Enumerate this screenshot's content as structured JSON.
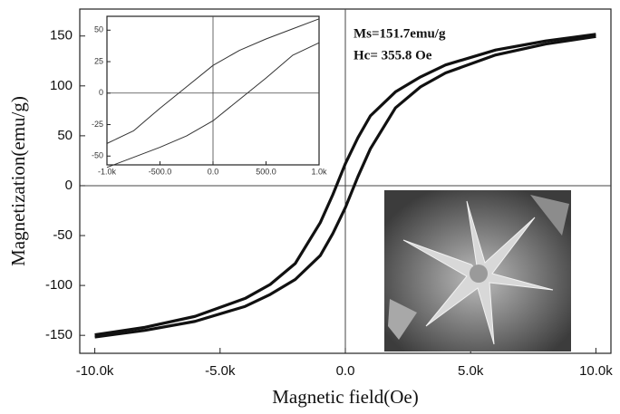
{
  "chart_data": [
    {
      "type": "line",
      "xlabel": "Magnetic field(Oe)",
      "ylabel": "Magnetization(emu/g)",
      "annotations": [
        "Ms=151.7emu/g",
        "Hc= 355.8 Oe"
      ],
      "x": [
        -10000,
        -8000,
        -6000,
        -4000,
        -3000,
        -2000,
        -1000,
        -500,
        0,
        500,
        1000,
        2000,
        3000,
        4000,
        6000,
        8000,
        10000
      ],
      "series": [
        {
          "color": "#111111",
          "values": [
            -149.5,
            -142,
            -131,
            -113,
            -99,
            -78,
            -37,
            -9,
            22,
            48,
            70,
            94,
            109,
            121,
            136,
            145,
            151.7
          ]
        },
        {
          "color": "#111111",
          "values": [
            -151.7,
            -145,
            -136,
            -121,
            -109,
            -94,
            -70,
            -48,
            -22,
            9,
            37,
            78,
            99,
            113,
            131,
            142,
            149.5
          ]
        }
      ],
      "xlim": [
        -10600,
        10600
      ],
      "ylim": [
        -168,
        177
      ],
      "xticks": [
        {
          "value": -10000,
          "label": "-10.0k"
        },
        {
          "value": -5000,
          "label": "-5.0k"
        },
        {
          "value": 0,
          "label": "0.0"
        },
        {
          "value": 5000,
          "label": "5.0k"
        },
        {
          "value": 10000,
          "label": "10.0k"
        }
      ],
      "yticks": [
        150,
        100,
        50,
        0,
        -50,
        -100,
        -150
      ]
    },
    {
      "type": "line",
      "x": [
        -1000,
        -750,
        -500,
        -250,
        0,
        250,
        500,
        750,
        1000
      ],
      "series": [
        {
          "color": "#333333",
          "values": [
            -40,
            -30,
            -12,
            5,
            22,
            34,
            43,
            51,
            59
          ]
        },
        {
          "color": "#333333",
          "values": [
            -59,
            -51,
            -43,
            -34,
            -22,
            -5,
            12,
            30,
            40
          ]
        }
      ],
      "xlim": [
        -1000,
        1000
      ],
      "ylim": [
        -57,
        61
      ],
      "xticks": [
        {
          "value": -1000,
          "label": "-1.0k"
        },
        {
          "value": -500,
          "label": "-500.0"
        },
        {
          "value": 0,
          "label": "0.0"
        },
        {
          "value": 500,
          "label": "500.0"
        },
        {
          "value": 1000,
          "label": "1.0k"
        }
      ],
      "yticks": [
        50,
        25,
        0,
        -25,
        -50
      ]
    }
  ]
}
